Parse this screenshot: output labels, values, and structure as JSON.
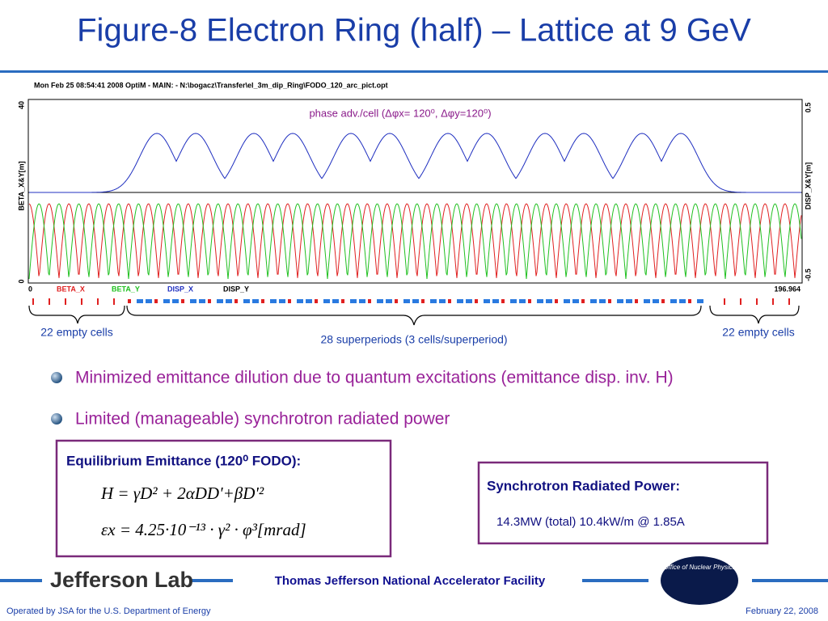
{
  "title": "Figure-8 Electron Ring (half) – Lattice at 9 GeV",
  "plot": {
    "header": "Mon Feb 25 08:54:41 2008    OptiM - MAIN: - N:\\bogacz\\Transfer\\el_3m_dip_Ring\\FODO_120_arc_pict.opt",
    "y_left_label": "BETA_X&Y[m]",
    "y_right_label": "DISP_X&Y[m]",
    "y_left_ticks": [
      40,
      0
    ],
    "y_right_ticks": [
      0.5,
      -0.5
    ],
    "x_ticks": [
      0,
      196.964
    ],
    "legend": [
      {
        "name": "BETA_X",
        "color": "#e02020"
      },
      {
        "name": "BETA_Y",
        "color": "#20c020"
      },
      {
        "name": "DISP_X",
        "color": "#2030c0"
      },
      {
        "name": "DISP_Y",
        "color": "#000000"
      }
    ],
    "annotation": "phase adv./cell (Δφx= 120⁰, Δφy=120⁰)"
  },
  "lattice_labels": [
    "22 empty cells",
    "28 superperiods (3 cells/superperiod)",
    "22 empty cells"
  ],
  "bullets": [
    "Minimized emittance dilution due to quantum excitations (emittance disp. inv. H)",
    "Limited (manageable) synchrotron radiated power"
  ],
  "emittance_box": {
    "title": "Equilibrium Emittance (120⁰ FODO):",
    "formulas": [
      "H = γD² + 2αDD'+βD'²",
      "εx = 4.25·10⁻¹³ · γ² · φ³[mrad]"
    ]
  },
  "power_box": {
    "title": "Synchrotron Radiated Power:",
    "text": "14.3MW (total) 10.4kW/m @ 1.85A"
  },
  "footer": {
    "logo": "Jefferson Lab",
    "facility": "Thomas Jefferson National Accelerator Facility",
    "office": "Office of Nuclear Physics",
    "operated": "Operated by JSA for the U.S. Department of Energy",
    "date": "February 22,  2008"
  }
}
